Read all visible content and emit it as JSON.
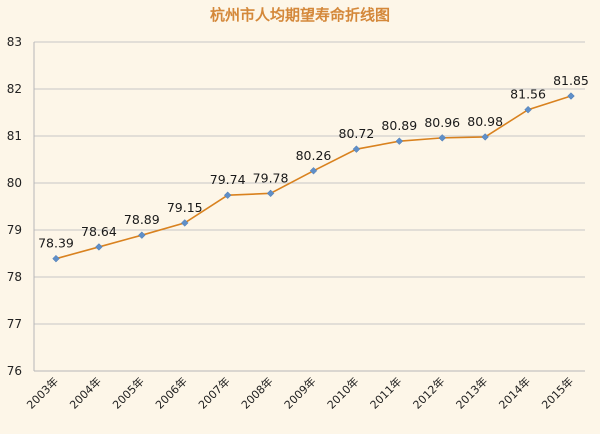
{
  "chart_data": {
    "type": "line",
    "title": "杭州市人均期望寿命折线图",
    "xlabel": "",
    "ylabel": "",
    "categories": [
      "2003年",
      "2004年",
      "2005年",
      "2006年",
      "2007年",
      "2008年",
      "2009年",
      "2010年",
      "2011年",
      "2012年",
      "2013年",
      "2014年",
      "2015年"
    ],
    "series": [
      {
        "values": [
          78.39,
          78.64,
          78.89,
          79.15,
          79.74,
          79.78,
          80.26,
          80.72,
          80.89,
          80.96,
          80.98,
          81.56,
          81.85
        ],
        "labels": [
          "78.39",
          "78.64",
          "78.89",
          "79.15",
          "79.74",
          "79.78",
          "80.26",
          "80.72",
          "80.89",
          "80.96",
          "80.98",
          "81.56",
          "81.85"
        ]
      }
    ],
    "ylim": [
      76,
      83
    ],
    "yticks": [
      "76",
      "77",
      "78",
      "79",
      "80",
      "81",
      "82",
      "83"
    ],
    "grid": true,
    "legend": "none",
    "colors": {
      "line": "#d9821f",
      "marker": "#5f8fc8",
      "grid": "#c6c6c6",
      "axis": "#b7b7b7",
      "title": "#d4883a",
      "background": "#fdf6e8"
    }
  }
}
